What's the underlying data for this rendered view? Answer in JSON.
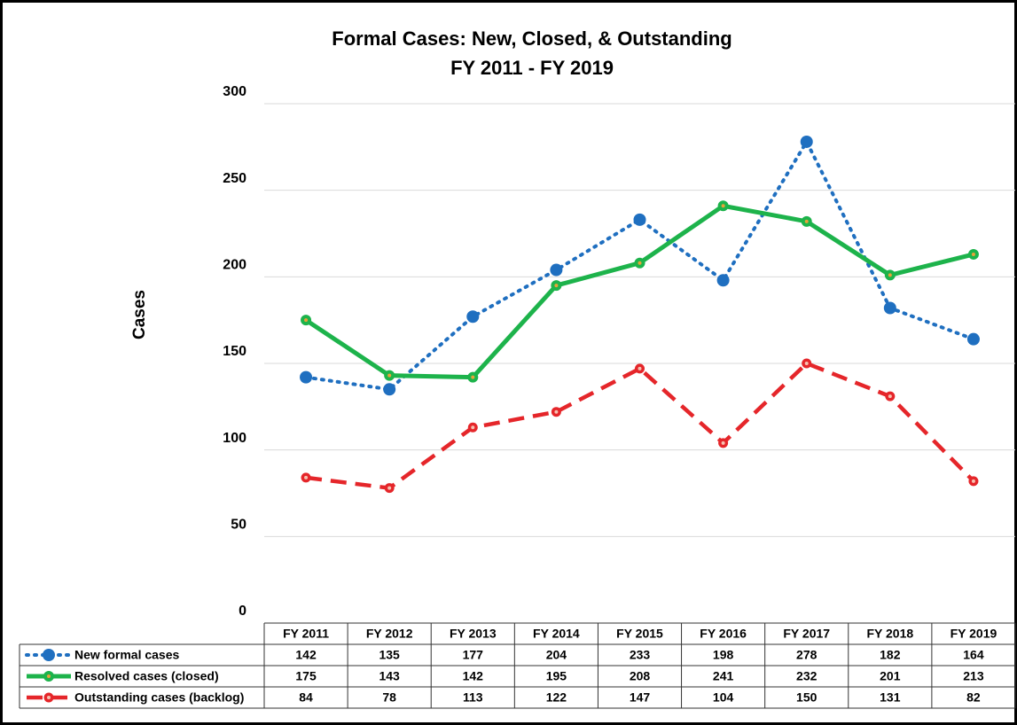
{
  "chart_data": {
    "type": "line",
    "title": "Formal Cases: New, Closed, & Outstanding",
    "subtitle": "FY 2011 - FY 2019",
    "y_label": "Cases",
    "categories": [
      "FY 2011",
      "FY 2012",
      "FY 2013",
      "FY 2014",
      "FY 2015",
      "FY 2016",
      "FY 2017",
      "FY 2018",
      "FY 2019"
    ],
    "series": [
      {
        "name": "New formal cases",
        "color": "#1f6fc0",
        "line_style": "dotted",
        "values": [
          142,
          135,
          177,
          204,
          233,
          198,
          278,
          182,
          164
        ]
      },
      {
        "name": "Resolved cases (closed)",
        "color": "#1db34b",
        "line_style": "solid",
        "values": [
          175,
          143,
          142,
          195,
          208,
          241,
          232,
          201,
          213
        ]
      },
      {
        "name": "Outstanding cases (backlog)",
        "color": "#e5262a",
        "line_style": "dashed",
        "values": [
          84,
          78,
          113,
          122,
          147,
          104,
          150,
          131,
          82
        ]
      }
    ],
    "ylim": [
      0,
      300
    ],
    "yticks": [
      0,
      50,
      100,
      150,
      200,
      250,
      300
    ],
    "grid": true,
    "data_table": true
  }
}
